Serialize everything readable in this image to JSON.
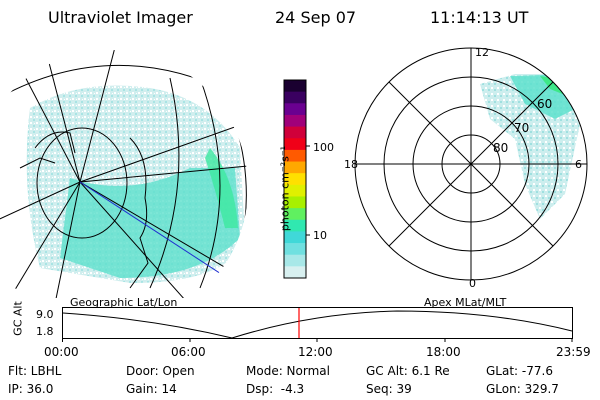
{
  "header": {
    "instrument": "Ultraviolet Imager",
    "date": "24 Sep 07",
    "time": "11:14:13 UT"
  },
  "geo_panel": {
    "label": "Geographic Lat/Lon"
  },
  "apex_panel": {
    "label": "Apex MLat/MLT",
    "mlt_labels": {
      "top": "12",
      "bottom": "0",
      "left": "18",
      "right": "6"
    },
    "lat_labels": [
      "60",
      "70",
      "80"
    ]
  },
  "colorbar": {
    "unit_label": "photon cm⁻²s⁻¹",
    "ticks": [
      "100",
      "10"
    ],
    "colors": [
      "#1a0030",
      "#3a0060",
      "#6a0090",
      "#a0007a",
      "#d0003a",
      "#f00018",
      "#ff5a00",
      "#ffa800",
      "#ffe000",
      "#e0f000",
      "#a8f000",
      "#60f060",
      "#30e8b0",
      "#40d8d8",
      "#70e0e0",
      "#a8e8e8",
      "#d8f0f0"
    ]
  },
  "timeline": {
    "axis_label": "GC Alt",
    "y_ticks": [
      "9.0",
      "1.8"
    ],
    "x_ticks": [
      "00:00",
      "06:00",
      "12:00",
      "18:00",
      "23:59"
    ],
    "marker_color": "#ff0000"
  },
  "status": {
    "flt": "Flt: LBHL",
    "ip": "IP: 36.0",
    "door": "Door: Open",
    "gain": "Gain: 14",
    "mode": "Mode: Normal",
    "dsp": "Dsp:  -4.3",
    "gc_alt": "GC Alt: 6.1 Re",
    "seq": "Seq: 39",
    "glat": "GLat: -77.6",
    "glon": "GLon: 329.7"
  }
}
